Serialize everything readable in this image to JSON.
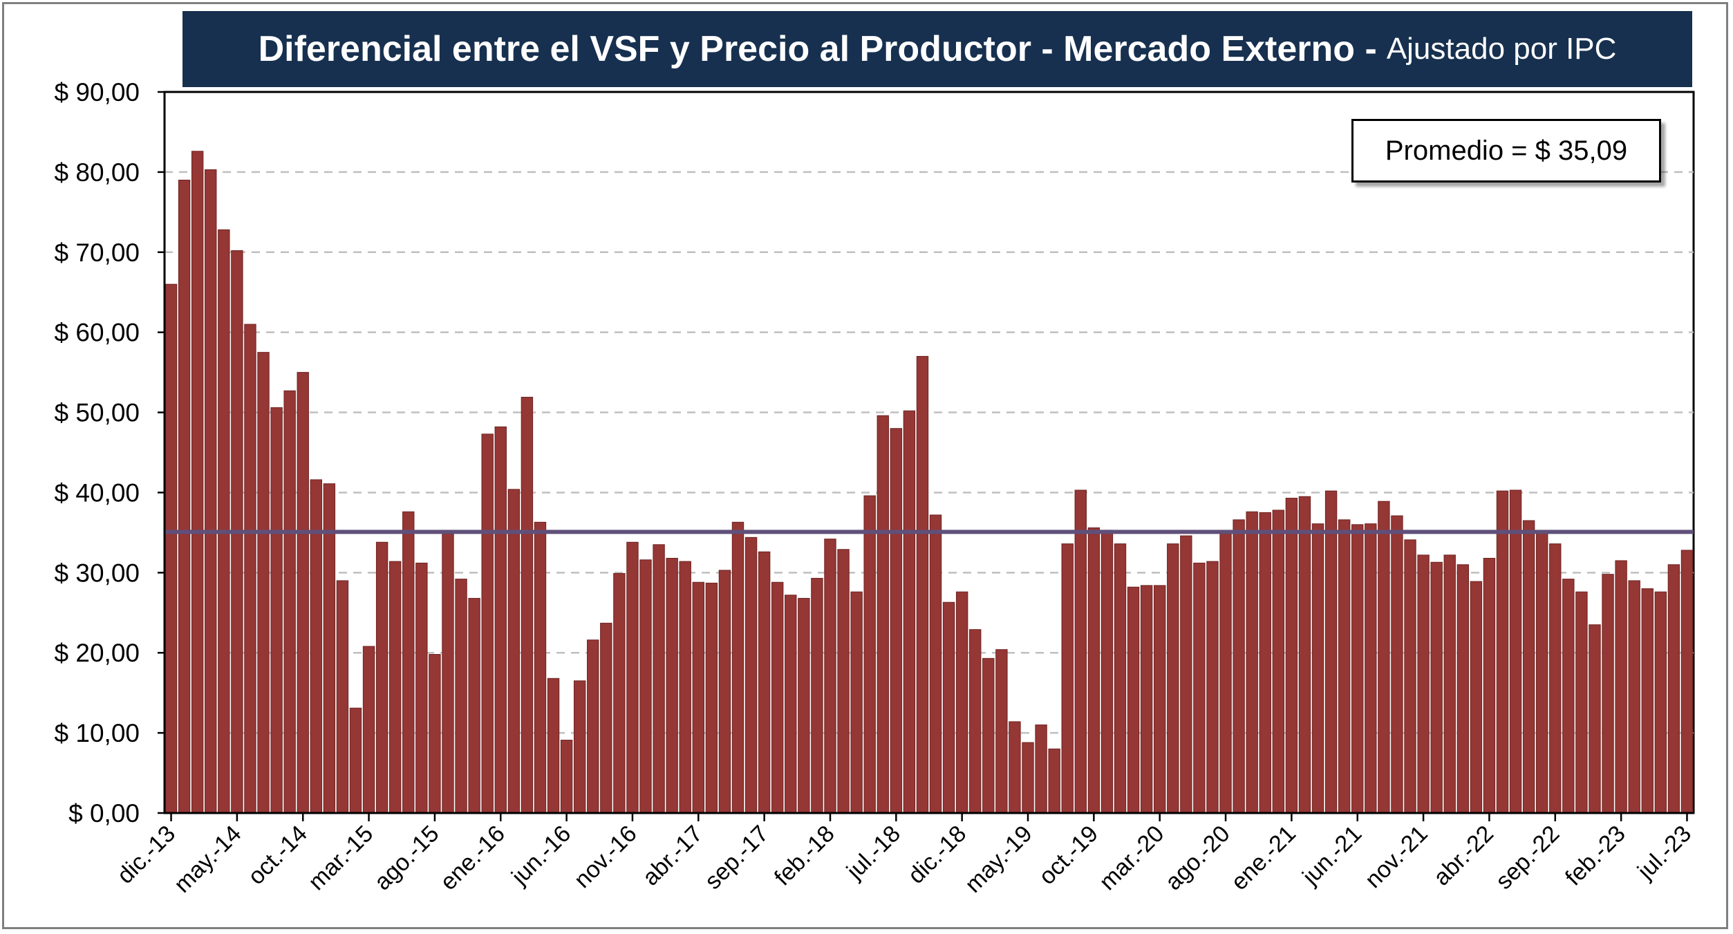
{
  "chart_data": {
    "type": "bar",
    "title": "Diferencial entre el VSF y Precio al Productor - Mercado Externo -",
    "subtitle": "Ajustado por IPC",
    "xlabel": "",
    "ylabel": "",
    "ylim": [
      0,
      90
    ],
    "yticks": [
      "$ 0,00",
      "$ 10,00",
      "$ 20,00",
      "$ 30,00",
      "$ 40,00",
      "$ 50,00",
      "$ 60,00",
      "$ 70,00",
      "$ 80,00",
      "$ 90,00"
    ],
    "xtick_labels": [
      "dic.-13",
      "may.-14",
      "oct.-14",
      "mar.-15",
      "ago.-15",
      "ene.-16",
      "jun.-16",
      "nov.-16",
      "abr.-17",
      "sep.-17",
      "feb.-18",
      "jul.-18",
      "dic.-18",
      "may.-19",
      "oct.-19",
      "mar.-20",
      "ago.-20",
      "ene.-21",
      "jun.-21",
      "nov.-21",
      "abr.-22",
      "sep.-22",
      "feb.-23",
      "jul.-23"
    ],
    "xtick_interval_months": 5,
    "values": [
      66,
      79,
      82.6,
      80.3,
      72.8,
      70.2,
      61,
      57.5,
      50.6,
      52.7,
      55,
      41.6,
      41.1,
      29,
      13.1,
      20.8,
      33.8,
      31.4,
      37.6,
      31.2,
      19.8,
      35,
      29.2,
      26.8,
      47.3,
      48.2,
      40.4,
      51.9,
      36.3,
      16.8,
      9.1,
      16.5,
      21.6,
      23.7,
      29.9,
      33.8,
      31.6,
      33.5,
      31.8,
      31.4,
      28.8,
      28.7,
      30.3,
      36.3,
      34.4,
      32.6,
      28.8,
      27.2,
      26.8,
      29.3,
      34.2,
      32.9,
      27.6,
      39.6,
      49.6,
      48,
      50.2,
      57,
      37.2,
      26.3,
      27.6,
      22.9,
      19.3,
      20.4,
      11.4,
      8.8,
      11,
      8,
      33.6,
      40.3,
      35.6,
      35.3,
      33.6,
      28.2,
      28.4,
      28.4,
      33.6,
      34.6,
      31.2,
      31.4,
      35.2,
      36.6,
      37.6,
      37.5,
      37.8,
      39.3,
      39.5,
      36.1,
      40.2,
      36.6,
      36,
      36.1,
      38.9,
      37.1,
      34.1,
      32.2,
      31.3,
      32.2,
      31,
      28.9,
      31.8,
      40.2,
      40.3,
      36.5,
      35.2,
      33.6,
      29.2,
      27.6,
      23.5,
      29.8,
      31.5,
      29,
      28,
      27.6,
      31,
      32.8
    ],
    "average": {
      "label": "Promedio = $ 35,09",
      "value": 35.09
    },
    "grid": "horizontal dashed",
    "colors": {
      "bar": "#953735",
      "bar_edge": "#6e2321",
      "average_line": "#60507a",
      "grid": "#bfbfbf",
      "banner": "#17304f"
    }
  }
}
